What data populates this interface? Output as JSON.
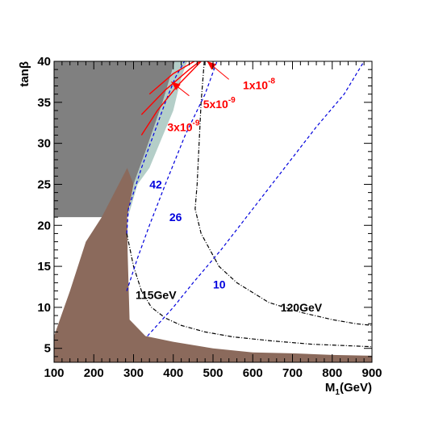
{
  "chart_data": {
    "type": "line",
    "title": "",
    "xlabel": "M",
    "xlabel_sub": "1",
    "xlabel_unit": "(GeV)",
    "ylabel": "tan",
    "ylabel_greek": "β",
    "xlim": [
      100,
      900
    ],
    "ylim": [
      3.3,
      40
    ],
    "x_ticks": [
      100,
      200,
      300,
      400,
      500,
      600,
      700,
      800,
      900
    ],
    "y_ticks": [
      5,
      10,
      15,
      20,
      25,
      30,
      35,
      40
    ],
    "x_tick_labels": [
      "100",
      "200",
      "300",
      "400",
      "500",
      "600",
      "700",
      "800",
      "900"
    ],
    "y_tick_labels": [
      "5",
      "10",
      "15",
      "20",
      "25",
      "30",
      "35",
      "40"
    ],
    "regions": [
      {
        "key": "excluded_gray",
        "color": "#808080",
        "points": [
          [
            100,
            3.3
          ],
          [
            100,
            40
          ],
          [
            404,
            40
          ],
          [
            373,
            35
          ],
          [
            330,
            29
          ],
          [
            300,
            25
          ],
          [
            284,
            21
          ],
          [
            100,
            21
          ]
        ]
      },
      {
        "key": "excluded_brown",
        "color": "#8b6a5c",
        "points": [
          [
            100,
            3.3
          ],
          [
            100,
            6.5
          ],
          [
            140,
            12
          ],
          [
            180,
            18
          ],
          [
            220,
            21
          ],
          [
            268,
            25.5
          ],
          [
            284,
            27
          ],
          [
            300,
            25
          ],
          [
            284,
            21
          ],
          [
            285,
            17
          ],
          [
            290,
            8.5
          ],
          [
            330,
            6.5
          ],
          [
            400,
            5.8
          ],
          [
            500,
            5
          ],
          [
            600,
            4.5
          ],
          [
            700,
            4.4
          ],
          [
            800,
            4.2
          ],
          [
            900,
            4.1
          ],
          [
            900,
            3.3
          ]
        ]
      },
      {
        "key": "allowed_teal",
        "color": "#b4cec8",
        "points": [
          [
            300,
            25
          ],
          [
            330,
            29
          ],
          [
            373,
            35
          ],
          [
            404,
            40
          ],
          [
            435,
            40
          ],
          [
            420,
            38
          ],
          [
            400,
            34
          ],
          [
            370,
            30.5
          ],
          [
            340,
            27
          ],
          [
            310,
            25
          ],
          [
            285,
            20.8
          ]
        ]
      }
    ],
    "series": [
      {
        "key": "mh115",
        "color": "#000000",
        "dash": "dashdot",
        "points": [
          [
            283,
            19
          ],
          [
            300,
            15
          ],
          [
            320,
            12
          ],
          [
            345,
            10
          ],
          [
            380,
            8.7
          ],
          [
            420,
            7.8
          ],
          [
            480,
            7
          ],
          [
            550,
            6.4
          ],
          [
            650,
            5.9
          ],
          [
            750,
            5.5
          ],
          [
            850,
            5.3
          ],
          [
            900,
            5.2
          ]
        ]
      },
      {
        "key": "mh120",
        "color": "#000000",
        "dash": "dashdot",
        "points": [
          [
            478,
            40
          ],
          [
            470,
            35
          ],
          [
            465,
            30
          ],
          [
            460,
            25
          ],
          [
            455,
            22
          ],
          [
            470,
            19
          ],
          [
            515,
            15
          ],
          [
            560,
            13
          ],
          [
            640,
            10.6
          ],
          [
            720,
            9.4
          ],
          [
            800,
            8.5
          ],
          [
            860,
            8
          ],
          [
            900,
            7.8
          ]
        ]
      },
      {
        "key": "abund42",
        "color": "#0000dd",
        "dash": "dashed",
        "points": [
          [
            283,
            19
          ],
          [
            287,
            22
          ],
          [
            320,
            27
          ],
          [
            350,
            31
          ],
          [
            380,
            35
          ],
          [
            405,
            38
          ],
          [
            428,
            40
          ]
        ]
      },
      {
        "key": "abund26",
        "color": "#0000dd",
        "dash": "dashed",
        "points": [
          [
            283,
            12
          ],
          [
            310,
            16
          ],
          [
            340,
            20
          ],
          [
            380,
            25
          ],
          [
            430,
            31
          ],
          [
            480,
            36
          ],
          [
            510,
            40
          ]
        ]
      },
      {
        "key": "abund10",
        "color": "#0000dd",
        "dash": "dashed",
        "points": [
          [
            335,
            6.5
          ],
          [
            400,
            10
          ],
          [
            450,
            13
          ],
          [
            520,
            17
          ],
          [
            600,
            22
          ],
          [
            680,
            27
          ],
          [
            760,
            32
          ],
          [
            830,
            36
          ],
          [
            880,
            40
          ]
        ]
      },
      {
        "key": "bsg_3e9",
        "color": "#ff0000",
        "dash": "solid",
        "points": [
          [
            320,
            31
          ],
          [
            360,
            34
          ],
          [
            410,
            37
          ],
          [
            470,
            40
          ]
        ]
      },
      {
        "key": "bsg_5e9",
        "color": "#ff0000",
        "dash": "solid",
        "points": [
          [
            320,
            33.5
          ],
          [
            380,
            36.5
          ],
          [
            440,
            39
          ],
          [
            480,
            40.5
          ]
        ]
      },
      {
        "key": "bsg_1e8",
        "color": "#ff0000",
        "dash": "solid",
        "points": [
          [
            340,
            36
          ],
          [
            400,
            38.5
          ],
          [
            460,
            40.2
          ]
        ]
      }
    ],
    "annotations": [
      {
        "key": "a115",
        "text": "115GeV",
        "color": "#000000",
        "x": 305,
        "y": 11
      },
      {
        "key": "a120",
        "text": "120GeV",
        "color": "#000000",
        "x": 670,
        "y": 9.5
      },
      {
        "key": "a42",
        "text": "42",
        "color": "#0000dd",
        "x": 340,
        "y": 24.5
      },
      {
        "key": "a26",
        "text": "26",
        "color": "#0000dd",
        "x": 390,
        "y": 20.5
      },
      {
        "key": "a10",
        "text": "10",
        "color": "#0000dd",
        "x": 500,
        "y": 12.3
      },
      {
        "key": "a1e8",
        "text": "1x10",
        "sup": "-8",
        "color": "#ff0000",
        "x": 575,
        "y": 36.6
      },
      {
        "key": "a5e9",
        "text": "5x10",
        "sup": "-9",
        "color": "#ff0000",
        "x": 475,
        "y": 34.3
      },
      {
        "key": "a3e9",
        "text": "3x10",
        "sup": "-9",
        "color": "#ff0000",
        "x": 385,
        "y": 31.5
      }
    ],
    "arrows": [
      {
        "key": "arr1",
        "color": "#ff0000",
        "from": [
          540,
          37.8
        ],
        "to": [
          485,
          40
        ]
      },
      {
        "key": "arr2",
        "color": "#ff0000",
        "from": [
          440,
          35.8
        ],
        "to": [
          395,
          37.5
        ]
      }
    ]
  }
}
